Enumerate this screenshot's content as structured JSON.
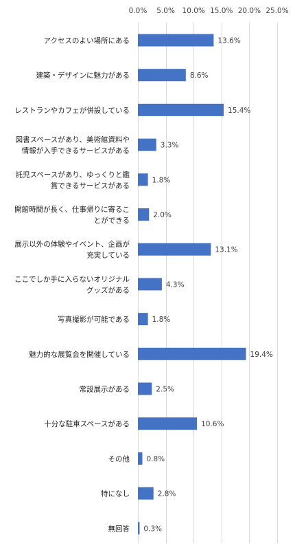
{
  "chart_data": {
    "type": "bar",
    "orientation": "horizontal",
    "categories": [
      [
        "アクセスのよい場所にある"
      ],
      [
        "建築・デザインに魅力がある"
      ],
      [
        "レストランやカフェが併設している"
      ],
      [
        "図書スペースがあり、美術館資料や",
        "情報が入手できるサービスがある"
      ],
      [
        "託児スペースがあり、ゆっくりと鑑",
        "賞できるサービスがある"
      ],
      [
        "開館時間が長く、仕事帰りに寄るこ",
        "とができる"
      ],
      [
        "展示以外の体験やイベント、企画が",
        "充実している"
      ],
      [
        "ここでしか手に入らないオリジナル",
        "グッズがある"
      ],
      [
        "写真撮影が可能である"
      ],
      [
        "魅力的な展覧会を開催している"
      ],
      [
        "常設展示がある"
      ],
      [
        "十分な駐車スペースがある"
      ],
      [
        "その他"
      ],
      [
        "特になし"
      ],
      [
        "無回答"
      ]
    ],
    "values": [
      13.6,
      8.6,
      15.4,
      3.3,
      1.8,
      2.0,
      13.1,
      4.3,
      1.8,
      19.4,
      2.5,
      10.6,
      0.8,
      2.8,
      0.3
    ],
    "value_labels": [
      "13.6%",
      "8.6%",
      "15.4%",
      "3.3%",
      "1.8%",
      "2.0%",
      "13.1%",
      "4.3%",
      "1.8%",
      "19.4%",
      "2.5%",
      "10.6%",
      "0.8%",
      "2.8%",
      "0.3%"
    ],
    "x_ticks": [
      0,
      5,
      10,
      15,
      20,
      25
    ],
    "x_tick_labels": [
      "0.0%",
      "5.0%",
      "10.0%",
      "15.0%",
      "20.0%",
      "25.0%"
    ],
    "xlim": [
      0,
      25
    ],
    "axis_position": "top",
    "grid": true,
    "bar_color": "#4472c4",
    "grid_color": "#d9d9d9",
    "title": "",
    "xlabel": "",
    "ylabel": ""
  }
}
